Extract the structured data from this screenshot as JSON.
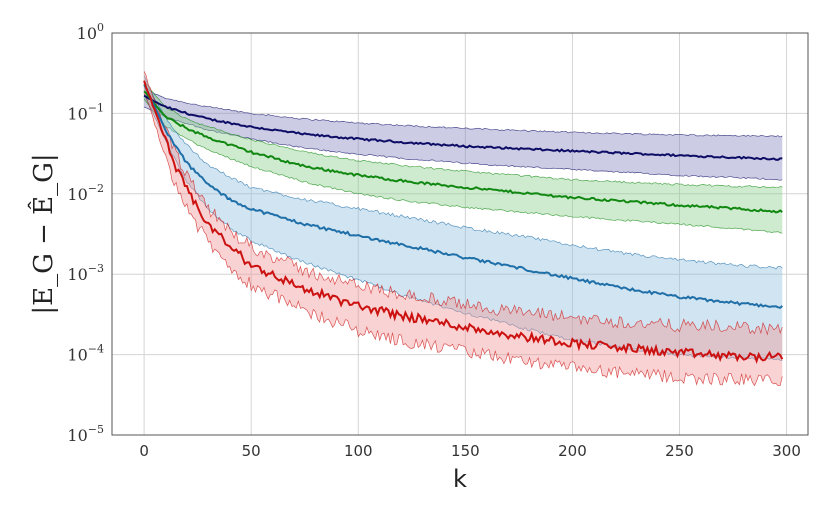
{
  "chart_data": {
    "type": "line",
    "xlabel": "k",
    "ylabel": "|E_G − Ê_G|",
    "xlim": [
      -15,
      310
    ],
    "ylim": [
      1e-05,
      1
    ],
    "yscale": "log",
    "grid": true,
    "x_ticks": [
      0,
      50,
      100,
      150,
      200,
      250,
      300
    ],
    "y_ticks": [
      {
        "base": "10",
        "exp": "0",
        "value": 1
      },
      {
        "base": "10",
        "exp": "−1",
        "value": 0.1
      },
      {
        "base": "10",
        "exp": "−2",
        "value": 0.01
      },
      {
        "base": "10",
        "exp": "−3",
        "value": 0.001
      },
      {
        "base": "10",
        "exp": "−4",
        "value": 0.0001
      },
      {
        "base": "10",
        "exp": "−5",
        "value": 1e-05
      }
    ],
    "series": [
      {
        "color": "#0d0d66",
        "fill_color": "#8080bb",
        "x": [
          0,
          5,
          10,
          20,
          30,
          50,
          75,
          100,
          125,
          150,
          200,
          250,
          298
        ],
        "mean": [
          0.165,
          0.14,
          0.12,
          0.1,
          0.085,
          0.068,
          0.055,
          0.048,
          0.043,
          0.039,
          0.034,
          0.03,
          0.027
        ],
        "upper": [
          0.22,
          0.175,
          0.155,
          0.135,
          0.12,
          0.1,
          0.085,
          0.076,
          0.07,
          0.065,
          0.058,
          0.054,
          0.052
        ],
        "lower": [
          0.12,
          0.105,
          0.09,
          0.075,
          0.062,
          0.048,
          0.037,
          0.031,
          0.027,
          0.024,
          0.02,
          0.017,
          0.015
        ]
      },
      {
        "color": "#118811",
        "fill_color": "#88cc88",
        "x": [
          0,
          5,
          10,
          20,
          30,
          50,
          75,
          100,
          125,
          150,
          200,
          250,
          298
        ],
        "mean": [
          0.19,
          0.13,
          0.09,
          0.065,
          0.05,
          0.033,
          0.022,
          0.017,
          0.014,
          0.012,
          0.009,
          0.0072,
          0.006
        ],
        "upper": [
          0.25,
          0.17,
          0.12,
          0.085,
          0.068,
          0.047,
          0.033,
          0.026,
          0.022,
          0.019,
          0.015,
          0.013,
          0.012
        ],
        "lower": [
          0.15,
          0.1,
          0.07,
          0.048,
          0.035,
          0.022,
          0.014,
          0.01,
          0.008,
          0.0068,
          0.0052,
          0.0042,
          0.0033
        ]
      },
      {
        "color": "#1f6fa8",
        "fill_color": "#8dbcdb",
        "x": [
          0,
          5,
          10,
          15,
          20,
          30,
          40,
          50,
          75,
          100,
          125,
          150,
          175,
          200,
          225,
          250,
          275,
          298
        ],
        "mean": [
          0.23,
          0.12,
          0.062,
          0.038,
          0.024,
          0.013,
          0.0085,
          0.0065,
          0.0042,
          0.003,
          0.0022,
          0.0016,
          0.0012,
          0.00088,
          0.00066,
          0.00052,
          0.00044,
          0.00039
        ],
        "upper": [
          0.29,
          0.15,
          0.09,
          0.058,
          0.04,
          0.023,
          0.016,
          0.012,
          0.0085,
          0.0065,
          0.005,
          0.0038,
          0.003,
          0.0023,
          0.0018,
          0.0015,
          0.0013,
          0.0012
        ],
        "lower": [
          0.17,
          0.09,
          0.045,
          0.025,
          0.014,
          0.0065,
          0.0038,
          0.0026,
          0.0014,
          0.00085,
          0.0005,
          0.00033,
          0.00022,
          0.00015,
          0.00012,
          0.0001,
          9.2e-05,
          8.8e-05
        ]
      },
      {
        "color": "#cc1111",
        "fill_color": "#f09090",
        "x": [
          0,
          5,
          10,
          15,
          20,
          25,
          30,
          40,
          50,
          75,
          100,
          125,
          150,
          175,
          200,
          225,
          250,
          275,
          298
        ],
        "mean": [
          0.25,
          0.11,
          0.045,
          0.021,
          0.011,
          0.0065,
          0.0042,
          0.0022,
          0.0013,
          0.00065,
          0.0004,
          0.00029,
          0.00022,
          0.00017,
          0.00014,
          0.00012,
          0.000105,
          9.5e-05,
          9.2e-05
        ],
        "upper": [
          0.33,
          0.14,
          0.062,
          0.03,
          0.017,
          0.01,
          0.0065,
          0.0035,
          0.0022,
          0.0011,
          0.00072,
          0.00054,
          0.00042,
          0.00034,
          0.00029,
          0.00025,
          0.00023,
          0.00022,
          0.00021
        ],
        "lower": [
          0.18,
          0.075,
          0.028,
          0.013,
          0.0068,
          0.0039,
          0.0025,
          0.0012,
          0.00075,
          0.00035,
          0.0002,
          0.00014,
          0.00011,
          8.5e-05,
          6.8e-05,
          5.8e-05,
          5.2e-05,
          4.9e-05,
          4.8e-05
        ]
      }
    ]
  }
}
